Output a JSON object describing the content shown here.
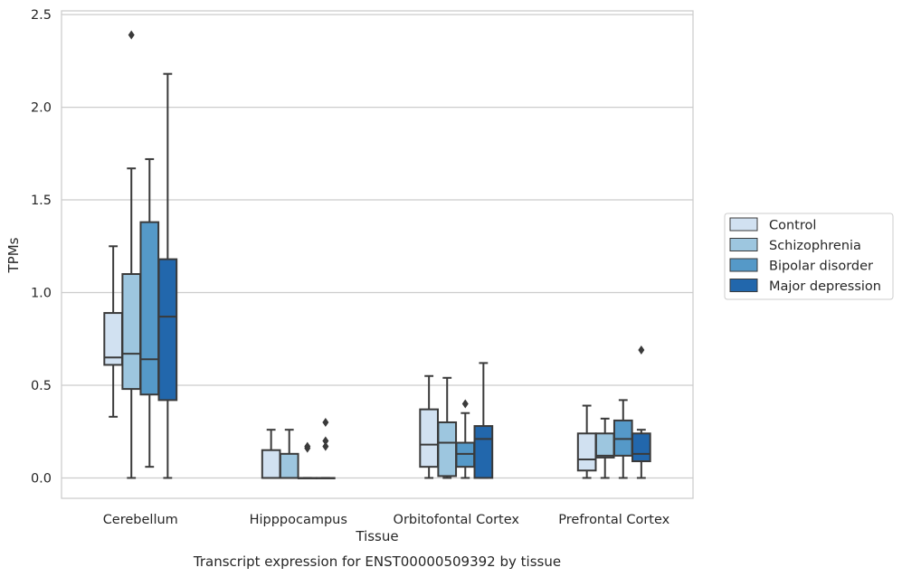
{
  "chart_data": {
    "type": "boxplot",
    "title": "Transcript expression for ENST00000509392 by tissue",
    "xlabel": "Tissue",
    "ylabel": "TPMs",
    "ylim": [
      -0.11,
      2.52
    ],
    "yticks": [
      "0.0",
      "0.5",
      "1.0",
      "1.5",
      "2.0",
      "2.5"
    ],
    "ytick_values": [
      0,
      0.5,
      1.0,
      1.5,
      2.0,
      2.5
    ],
    "grid": "horizontal",
    "legend_position": "right",
    "categories": [
      "Cerebellum",
      "Hipppocampus",
      "Orbitofontal Cortex",
      "Prefrontal Cortex"
    ],
    "series": [
      {
        "name": "Control",
        "color": "#d1e1f1",
        "boxes": [
          {
            "whislo": 0.33,
            "q1": 0.61,
            "med": 0.65,
            "q3": 0.89,
            "whishi": 1.25,
            "fliers": []
          },
          {
            "whislo": 0.0,
            "q1": 0.0,
            "med": 0.0,
            "q3": 0.15,
            "whishi": 0.26,
            "fliers": []
          },
          {
            "whislo": 0.0,
            "q1": 0.06,
            "med": 0.18,
            "q3": 0.37,
            "whishi": 0.55,
            "fliers": []
          },
          {
            "whislo": 0.0,
            "q1": 0.04,
            "med": 0.1,
            "q3": 0.24,
            "whishi": 0.39,
            "fliers": []
          }
        ]
      },
      {
        "name": "Schizophrenia",
        "color": "#9dc6df",
        "boxes": [
          {
            "whislo": 0.0,
            "q1": 0.48,
            "med": 0.67,
            "q3": 1.1,
            "whishi": 1.67,
            "fliers": [
              2.39
            ]
          },
          {
            "whislo": 0.0,
            "q1": 0.0,
            "med": 0.0,
            "q3": 0.13,
            "whishi": 0.26,
            "fliers": []
          },
          {
            "whislo": 0.0,
            "q1": 0.01,
            "med": 0.19,
            "q3": 0.3,
            "whishi": 0.54,
            "fliers": []
          },
          {
            "whislo": 0.0,
            "q1": 0.11,
            "med": 0.12,
            "q3": 0.24,
            "whishi": 0.32,
            "fliers": []
          }
        ]
      },
      {
        "name": "Bipolar disorder",
        "color": "#5599c8",
        "boxes": [
          {
            "whislo": 0.06,
            "q1": 0.45,
            "med": 0.64,
            "q3": 1.38,
            "whishi": 1.72,
            "fliers": []
          },
          {
            "whislo": 0.0,
            "q1": 0.0,
            "med": 0.0,
            "q3": 0.0,
            "whishi": 0.0,
            "fliers": [
              0.16,
              0.17
            ]
          },
          {
            "whislo": 0.0,
            "q1": 0.06,
            "med": 0.13,
            "q3": 0.19,
            "whishi": 0.35,
            "fliers": [
              0.4
            ]
          },
          {
            "whislo": 0.0,
            "q1": 0.12,
            "med": 0.21,
            "q3": 0.31,
            "whishi": 0.42,
            "fliers": []
          }
        ]
      },
      {
        "name": "Major depression",
        "color": "#2267ac",
        "boxes": [
          {
            "whislo": 0.0,
            "q1": 0.42,
            "med": 0.87,
            "q3": 1.18,
            "whishi": 2.18,
            "fliers": []
          },
          {
            "whislo": 0.0,
            "q1": 0.0,
            "med": 0.0,
            "q3": 0.0,
            "whishi": 0.0,
            "fliers": [
              0.17,
              0.2,
              0.3
            ]
          },
          {
            "whislo": 0.0,
            "q1": 0.0,
            "med": 0.21,
            "q3": 0.28,
            "whishi": 0.62,
            "fliers": []
          },
          {
            "whislo": 0.0,
            "q1": 0.09,
            "med": 0.13,
            "q3": 0.24,
            "whishi": 0.26,
            "fliers": [
              0.69
            ]
          }
        ]
      }
    ]
  }
}
